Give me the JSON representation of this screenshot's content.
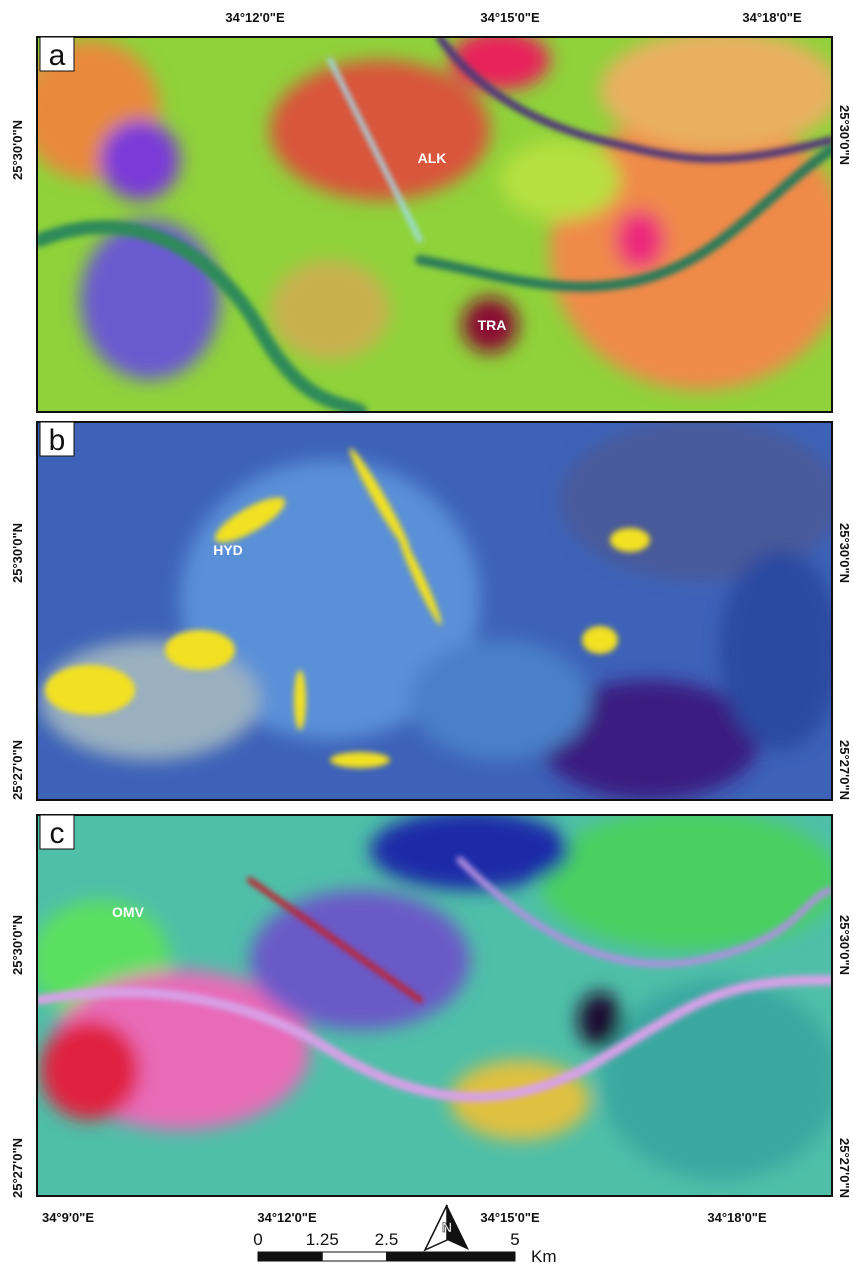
{
  "top_longitudes": [
    "34°12'0\"E",
    "34°15'0\"E",
    "34°18'0\"E"
  ],
  "panels": [
    {
      "letter": "a",
      "left_latitudes": [
        "25°30'0\"N"
      ],
      "right_latitudes": [
        "25°30'0\"N"
      ],
      "labels": [
        "ALK",
        "TRA"
      ]
    },
    {
      "letter": "b",
      "left_latitudes": [
        "25°30'0\"N",
        "25°27'0\"N"
      ],
      "right_latitudes": [
        "25°30'0\"N",
        "25°27'0\"N"
      ],
      "labels": [
        "HYD"
      ]
    },
    {
      "letter": "c",
      "left_latitudes": [
        "25°30'0\"N",
        "25°27'0\"N"
      ],
      "right_latitudes": [
        "25°30'0\"N",
        "25°27'0\"N"
      ],
      "labels": [
        "OMV"
      ]
    }
  ],
  "bottom_longitudes": [
    "34°9'0\"E",
    "34°12'0\"E",
    "34°15'0\"E",
    "34°18'0\"E"
  ],
  "scale_bar": {
    "ticks": [
      0,
      1.25,
      2.5,
      5
    ],
    "unit": "Km"
  }
}
